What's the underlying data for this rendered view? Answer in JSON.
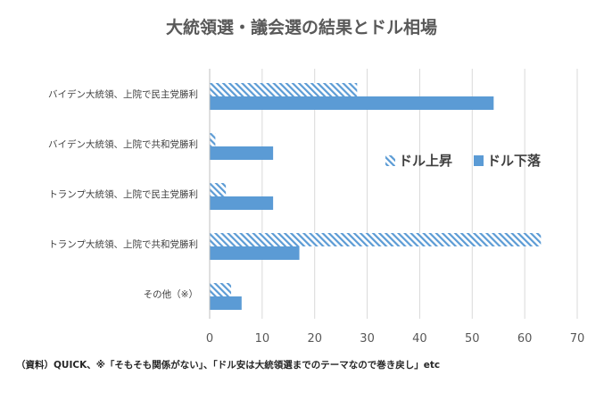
{
  "chart_data": {
    "type": "bar",
    "orientation": "horizontal",
    "title": "大統領選・議会選の結果とドル相場",
    "categories": [
      "バイデン大統領、上院で民主党勝利",
      "バイデン大統領、上院で共和党勝利",
      "トランプ大統領、上院で民主党勝利",
      "トランプ大統領、上院で共和党勝利",
      "その他（※）"
    ],
    "series": [
      {
        "name": "ドル上昇",
        "pattern": "hatched",
        "color": "#5b9bd5",
        "values": [
          28,
          1,
          3,
          63,
          4
        ]
      },
      {
        "name": "ドル下落",
        "pattern": "solid",
        "color": "#5b9bd5",
        "values": [
          54,
          12,
          12,
          17,
          6
        ]
      }
    ],
    "xlim": [
      0,
      70
    ],
    "xticks": [
      0,
      10,
      20,
      30,
      40,
      50,
      60,
      70
    ],
    "xlabel": "",
    "ylabel": "",
    "grid": "vertical",
    "legend_position": "right"
  },
  "source_note": "（資料）QUICK、※「そもそも関係がない」、「ドル安は大統領選までのテーマなので巻き戻し」etc"
}
